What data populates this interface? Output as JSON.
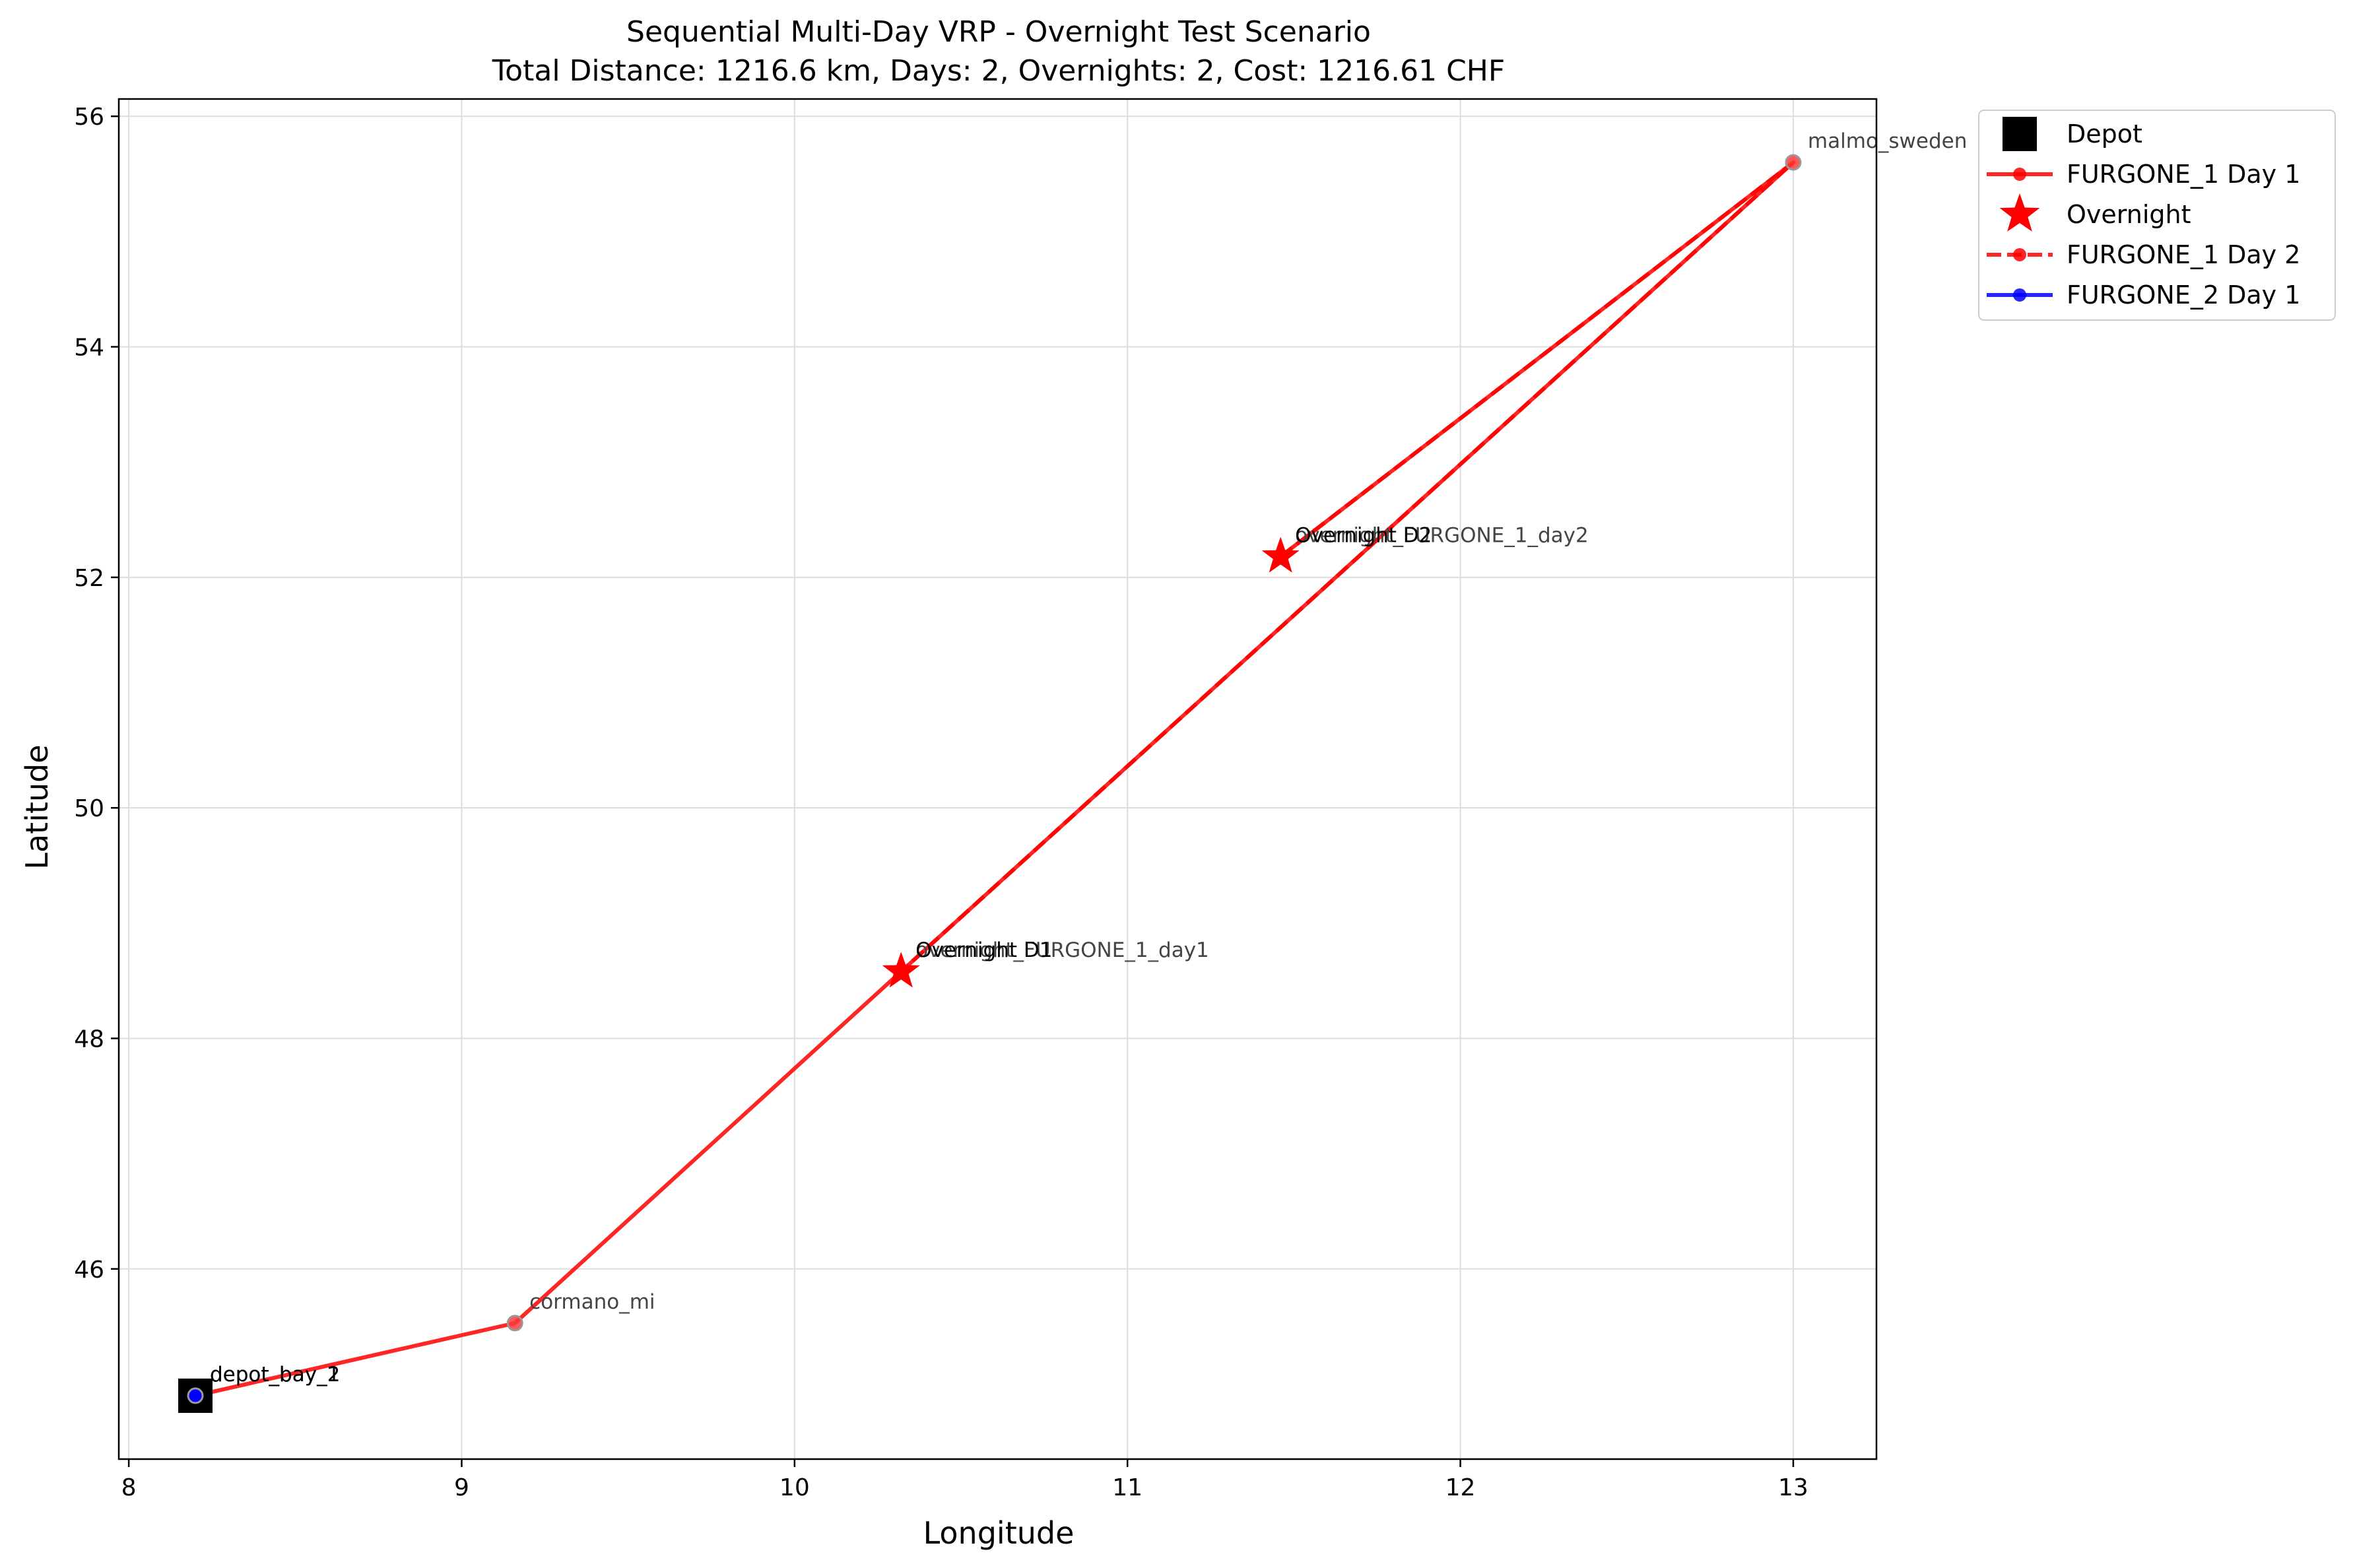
{
  "chart_data": {
    "type": "scatter",
    "title": "Sequential Multi-Day VRP - Overnight Test Scenario",
    "subtitle": "Total Distance: 1216.6 km, Days: 2, Overnights: 2, Cost: 1216.61 CHF",
    "xlabel": "Longitude",
    "ylabel": "Latitude",
    "xlim": [
      7.97,
      13.25
    ],
    "ylim": [
      44.35,
      56.15
    ],
    "xticks": [
      8,
      9,
      10,
      11,
      12,
      13
    ],
    "yticks": [
      46,
      48,
      50,
      52,
      54,
      56
    ],
    "grid": true,
    "legend_position": "outside-top-right",
    "legend": [
      {
        "label": "Depot",
        "marker": "square",
        "color": "#000000"
      },
      {
        "label": "FURGONE_1 Day 1",
        "marker": "line-solid",
        "color": "#ff0000"
      },
      {
        "label": "Overnight",
        "marker": "star",
        "color": "#ff0000"
      },
      {
        "label": "FURGONE_1 Day 2",
        "marker": "line-dashed",
        "color": "#ff0000"
      },
      {
        "label": "FURGONE_2 Day 1",
        "marker": "line-solid",
        "color": "#0000ff"
      }
    ],
    "series": [
      {
        "name": "FURGONE_1 Day 1",
        "color": "#ff0000",
        "dash": false,
        "points": [
          [
            8.2,
            44.9
          ],
          [
            9.16,
            45.53
          ],
          [
            10.32,
            48.58
          ],
          [
            13.0,
            55.6
          ],
          [
            11.46,
            52.18
          ]
        ]
      },
      {
        "name": "FURGONE_1 Day 2",
        "color": "#ff0000",
        "dash": true,
        "points": [
          [
            11.46,
            52.18
          ],
          [
            13.0,
            55.6
          ],
          [
            10.32,
            48.58
          ]
        ]
      },
      {
        "name": "FURGONE_2 Day 1",
        "color": "#0000ff",
        "dash": false,
        "points": [
          [
            8.2,
            44.9
          ]
        ]
      }
    ],
    "depots": [
      {
        "x": 8.2,
        "y": 44.9
      }
    ],
    "overnights": [
      {
        "x": 10.32,
        "y": 48.58
      },
      {
        "x": 11.46,
        "y": 52.18
      }
    ],
    "stops": [
      {
        "x": 9.16,
        "y": 45.53
      },
      {
        "x": 13.0,
        "y": 55.6
      },
      {
        "x": 10.32,
        "y": 48.58
      },
      {
        "x": 11.46,
        "y": 52.18
      }
    ],
    "annotations": [
      {
        "text": "depot_bay_1",
        "x": 8.2,
        "y": 44.9,
        "color": "#000000"
      },
      {
        "text": "depot_bay_2",
        "x": 8.2,
        "y": 44.9,
        "color": "#000000"
      },
      {
        "text": "cormano_mi",
        "x": 9.16,
        "y": 45.53,
        "color": "#444444"
      },
      {
        "text": "malmo_sweden",
        "x": 13.0,
        "y": 55.6,
        "color": "#444444"
      },
      {
        "text": "overnight_FURGONE_1_day1",
        "x": 10.32,
        "y": 48.58,
        "color": "#444444"
      },
      {
        "text": "Overnight D1",
        "x": 10.32,
        "y": 48.58,
        "color": "#000000"
      },
      {
        "text": "overnight_FURGONE_1_day2",
        "x": 11.46,
        "y": 52.18,
        "color": "#444444"
      },
      {
        "text": "Overnight D2",
        "x": 11.46,
        "y": 52.18,
        "color": "#000000"
      }
    ]
  }
}
